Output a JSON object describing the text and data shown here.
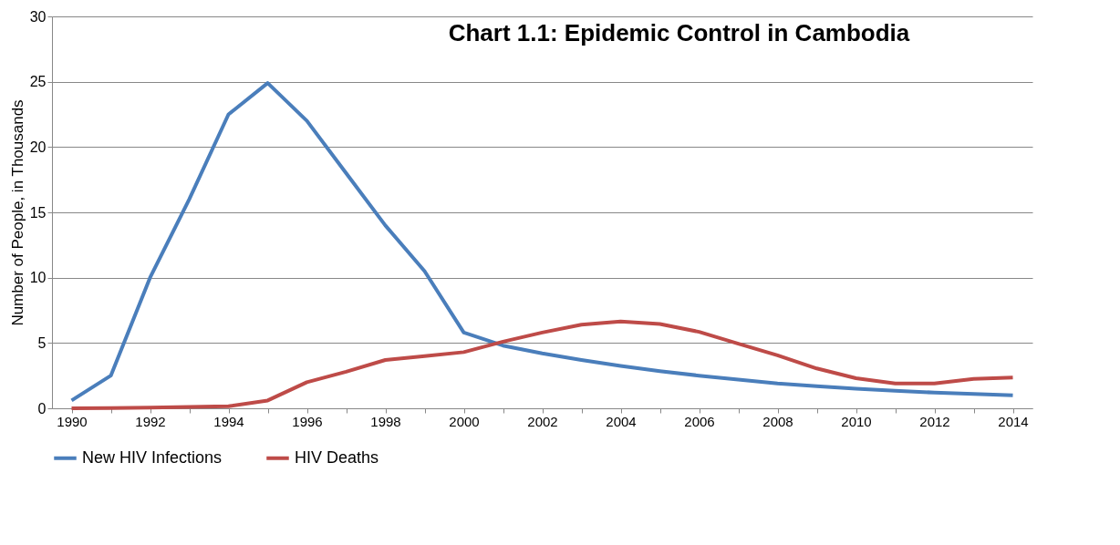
{
  "chart_data": {
    "type": "line",
    "title": "Chart 1.1:  Epidemic Control in Cambodia",
    "ylabel": "Number of People, in Thousands",
    "categories": [
      "1990",
      null,
      "1992",
      null,
      "1994",
      null,
      "1996",
      null,
      "1998",
      null,
      "2000",
      null,
      "2002",
      null,
      "2004",
      null,
      "2006",
      null,
      "2008",
      null,
      "2010",
      null,
      "2012",
      null,
      "2014"
    ],
    "series": [
      {
        "name": "New HIV Infections",
        "color": "#4a7ebb",
        "values": [
          0.6,
          2.5,
          10,
          16,
          22.5,
          24.9,
          22,
          18,
          14,
          10.5,
          5.8,
          4.8,
          4.2,
          3.7,
          3.25,
          2.85,
          2.5,
          2.2,
          1.9,
          1.7,
          1.5,
          1.35,
          1.2,
          1.1,
          1.0
        ]
      },
      {
        "name": "HIV Deaths",
        "color": "#be4b48",
        "values": [
          0,
          0.02,
          0.05,
          0.1,
          0.15,
          0.6,
          2.0,
          2.8,
          3.7,
          4.0,
          4.3,
          5.1,
          5.8,
          6.4,
          6.65,
          6.45,
          5.85,
          4.95,
          4.05,
          3.05,
          2.3,
          1.9,
          1.9,
          2.25,
          2.35
        ]
      }
    ],
    "ylim": [
      0,
      30
    ],
    "yticks": [
      0,
      5,
      10,
      15,
      20,
      25,
      30
    ],
    "grid": "y",
    "legend": "bottom",
    "marker": "none",
    "line_style": "solid"
  }
}
